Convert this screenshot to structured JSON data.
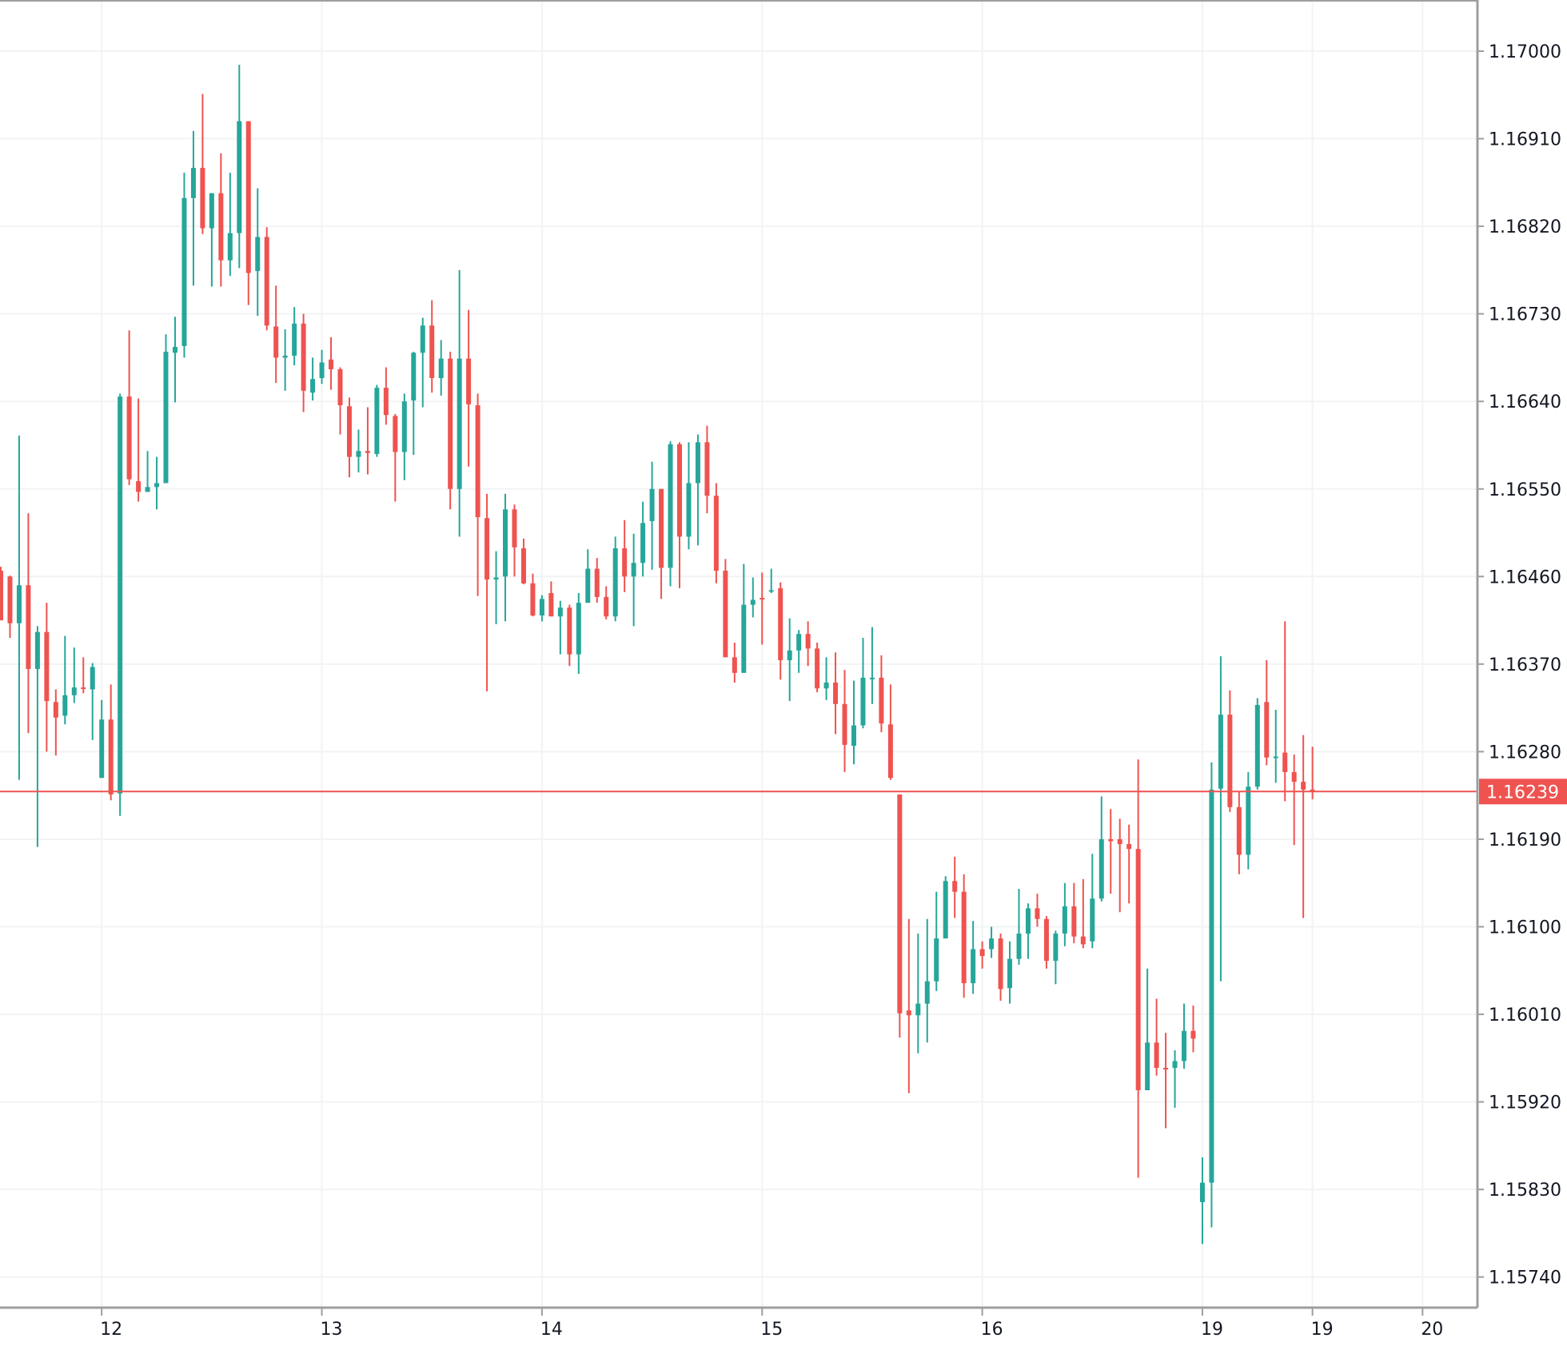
{
  "chart_data": {
    "type": "candlestick",
    "title": "",
    "xlabel": "",
    "ylabel": "",
    "ylim": [
      1.157,
      1.1705
    ],
    "grid": true,
    "colors": {
      "up": "#26a69a",
      "down": "#ef5350",
      "grid": "#f2f3f5",
      "axis": "#9e9e9e",
      "last_price": "#ef5350"
    },
    "y_ticks": [
      "1.17000",
      "1.16910",
      "1.16820",
      "1.16730",
      "1.16640",
      "1.16550",
      "1.16460",
      "1.16370",
      "1.16280",
      "1.16190",
      "1.16100",
      "1.16010",
      "1.15920",
      "1.15830",
      "1.15740"
    ],
    "x_ticks": [
      {
        "label": "12",
        "bar": 11
      },
      {
        "label": "13",
        "bar": 35
      },
      {
        "label": "14",
        "bar": 59
      },
      {
        "label": "15",
        "bar": 83
      },
      {
        "label": "16",
        "bar": 107
      },
      {
        "label": "19",
        "bar": 131
      },
      {
        "label": "19",
        "bar": 143
      },
      {
        "label": "20",
        "bar": 155
      }
    ],
    "last_price": "1.16239",
    "ohlc_fields": [
      "open",
      "high",
      "low",
      "close"
    ],
    "candles": [
      [
        1.16466,
        1.1647,
        1.16415,
        1.16415
      ],
      [
        1.1646,
        1.16461,
        1.16397,
        1.16412
      ],
      [
        1.16412,
        1.16605,
        1.16251,
        1.16451
      ],
      [
        1.16451,
        1.16525,
        1.16299,
        1.16365
      ],
      [
        1.16365,
        1.16409,
        1.16182,
        1.16403
      ],
      [
        1.16403,
        1.16433,
        1.1628,
        1.16332
      ],
      [
        1.16331,
        1.16344,
        1.16276,
        1.16315
      ],
      [
        1.16317,
        1.16399,
        1.16308,
        1.16338
      ],
      [
        1.16338,
        1.16387,
        1.1633,
        1.16346
      ],
      [
        1.16346,
        1.16377,
        1.1634,
        1.16345
      ],
      [
        1.16344,
        1.16371,
        1.16292,
        1.16367
      ],
      [
        1.16253,
        1.16333,
        1.16253,
        1.16313
      ],
      [
        1.16313,
        1.16349,
        1.1623,
        1.16236
      ],
      [
        1.16237,
        1.16648,
        1.16214,
        1.16645
      ],
      [
        1.16645,
        1.16713,
        1.16554,
        1.1656
      ],
      [
        1.16558,
        1.16643,
        1.16537,
        1.16547
      ],
      [
        1.16547,
        1.16589,
        1.16547,
        1.16552
      ],
      [
        1.16552,
        1.16583,
        1.16529,
        1.16556
      ],
      [
        1.16556,
        1.16709,
        1.16556,
        1.16691
      ],
      [
        1.1669,
        1.16727,
        1.16639,
        1.16696
      ],
      [
        1.16697,
        1.16875,
        1.16685,
        1.16849
      ],
      [
        1.16849,
        1.16918,
        1.16759,
        1.1688
      ],
      [
        1.1688,
        1.16956,
        1.16812,
        1.16818
      ],
      [
        1.16818,
        1.16854,
        1.16758,
        1.16854
      ],
      [
        1.16854,
        1.16895,
        1.16758,
        1.16785
      ],
      [
        1.16785,
        1.16875,
        1.16769,
        1.16813
      ],
      [
        1.16813,
        1.16986,
        1.16777,
        1.16928
      ],
      [
        1.16928,
        1.16928,
        1.16739,
        1.16772
      ],
      [
        1.16774,
        1.16859,
        1.16728,
        1.16809
      ],
      [
        1.16809,
        1.16819,
        1.16713,
        1.16718
      ],
      [
        1.16717,
        1.16759,
        1.16659,
        1.16685
      ],
      [
        1.16685,
        1.16714,
        1.16651,
        1.16687
      ],
      [
        1.16687,
        1.16737,
        1.16677,
        1.1672
      ],
      [
        1.1672,
        1.1673,
        1.16629,
        1.16651
      ],
      [
        1.16649,
        1.16685,
        1.16641,
        1.16663
      ],
      [
        1.16664,
        1.16693,
        1.16658,
        1.1668
      ],
      [
        1.16683,
        1.16706,
        1.16652,
        1.16673
      ],
      [
        1.16673,
        1.16675,
        1.16606,
        1.16636
      ],
      [
        1.16635,
        1.16644,
        1.16562,
        1.16583
      ],
      [
        1.16583,
        1.16611,
        1.16567,
        1.16589
      ],
      [
        1.16589,
        1.16634,
        1.16565,
        1.16587
      ],
      [
        1.16586,
        1.16657,
        1.16583,
        1.16654
      ],
      [
        1.16654,
        1.16675,
        1.16616,
        1.16626
      ],
      [
        1.16625,
        1.16627,
        1.16537,
        1.16588
      ],
      [
        1.16588,
        1.16648,
        1.16559,
        1.1664
      ],
      [
        1.16641,
        1.16691,
        1.16585,
        1.1669
      ],
      [
        1.1669,
        1.16726,
        1.16634,
        1.16718
      ],
      [
        1.16718,
        1.16744,
        1.16649,
        1.16664
      ],
      [
        1.16664,
        1.16703,
        1.16646,
        1.16684
      ],
      [
        1.16684,
        1.16691,
        1.16529,
        1.1655
      ],
      [
        1.1655,
        1.16775,
        1.16501,
        1.16684
      ],
      [
        1.16684,
        1.16734,
        1.16573,
        1.16637
      ],
      [
        1.16636,
        1.16648,
        1.1644,
        1.16521
      ],
      [
        1.1652,
        1.16545,
        1.16342,
        1.16457
      ],
      [
        1.16457,
        1.16486,
        1.16411,
        1.16459
      ],
      [
        1.1646,
        1.16545,
        1.16414,
        1.16529
      ],
      [
        1.16529,
        1.16534,
        1.1646,
        1.1649
      ],
      [
        1.16489,
        1.16499,
        1.16452,
        1.16453
      ],
      [
        1.16453,
        1.16463,
        1.16419,
        1.1642
      ],
      [
        1.1642,
        1.16441,
        1.16414,
        1.16437
      ],
      [
        1.16443,
        1.16455,
        1.16419,
        1.16419
      ],
      [
        1.16419,
        1.16435,
        1.1638,
        1.16428
      ],
      [
        1.16428,
        1.16431,
        1.16368,
        1.1638
      ],
      [
        1.1638,
        1.16443,
        1.1636,
        1.16433
      ],
      [
        1.16433,
        1.16488,
        1.16433,
        1.16468
      ],
      [
        1.16468,
        1.16479,
        1.16433,
        1.16439
      ],
      [
        1.16439,
        1.1645,
        1.16416,
        1.16419
      ],
      [
        1.16419,
        1.16501,
        1.16414,
        1.16489
      ],
      [
        1.16489,
        1.16518,
        1.16444,
        1.1646
      ],
      [
        1.1646,
        1.16504,
        1.16409,
        1.16474
      ],
      [
        1.16474,
        1.16537,
        1.1646,
        1.16515
      ],
      [
        1.16517,
        1.16578,
        1.16467,
        1.1655
      ],
      [
        1.1655,
        1.1655,
        1.16437,
        1.16469
      ],
      [
        1.16469,
        1.16599,
        1.1645,
        1.16596
      ],
      [
        1.16596,
        1.16598,
        1.16448,
        1.16501
      ],
      [
        1.16501,
        1.16598,
        1.16488,
        1.16556
      ],
      [
        1.16556,
        1.16606,
        1.16492,
        1.16598
      ],
      [
        1.16598,
        1.16615,
        1.16525,
        1.16543
      ],
      [
        1.16543,
        1.16556,
        1.16453,
        1.16466
      ],
      [
        1.16466,
        1.16478,
        1.16377,
        1.16377
      ],
      [
        1.16377,
        1.16392,
        1.16351,
        1.16361
      ],
      [
        1.16361,
        1.16473,
        1.16361,
        1.16431
      ],
      [
        1.16431,
        1.16459,
        1.16418,
        1.16436
      ],
      [
        1.16438,
        1.16464,
        1.1639,
        1.16437
      ],
      [
        1.16445,
        1.16468,
        1.16443,
        1.16446
      ],
      [
        1.16448,
        1.16454,
        1.16354,
        1.16374
      ],
      [
        1.16374,
        1.16417,
        1.16332,
        1.16384
      ],
      [
        1.16384,
        1.16405,
        1.16361,
        1.16401
      ],
      [
        1.16401,
        1.16414,
        1.16368,
        1.16386
      ],
      [
        1.16386,
        1.16392,
        1.16341,
        1.16345
      ],
      [
        1.16345,
        1.16377,
        1.16333,
        1.16351
      ],
      [
        1.16351,
        1.16382,
        1.16298,
        1.16329
      ],
      [
        1.16329,
        1.16364,
        1.16259,
        1.16287
      ],
      [
        1.16286,
        1.16353,
        1.16267,
        1.16307
      ],
      [
        1.16307,
        1.16397,
        1.16304,
        1.16356
      ],
      [
        1.16355,
        1.16408,
        1.16329,
        1.16356
      ],
      [
        1.16356,
        1.16379,
        1.163,
        1.16309
      ],
      [
        1.16308,
        1.16349,
        1.16251,
        1.16253
      ],
      [
        1.16236,
        1.16236,
        1.15986,
        1.16011
      ],
      [
        1.16014,
        1.16108,
        1.15929,
        1.16009
      ],
      [
        1.16009,
        1.16093,
        1.1597,
        1.16021
      ],
      [
        1.16021,
        1.16108,
        1.15981,
        1.16044
      ],
      [
        1.16044,
        1.16136,
        1.16034,
        1.16088
      ],
      [
        1.16088,
        1.16152,
        1.16088,
        1.16147
      ],
      [
        1.16147,
        1.16172,
        1.16109,
        1.16136
      ],
      [
        1.16136,
        1.16154,
        1.16027,
        1.16042
      ],
      [
        1.16042,
        1.16106,
        1.16031,
        1.16077
      ],
      [
        1.16077,
        1.16085,
        1.16057,
        1.1607
      ],
      [
        1.16077,
        1.161,
        1.16068,
        1.16088
      ],
      [
        1.16088,
        1.16093,
        1.16024,
        1.16036
      ],
      [
        1.16037,
        1.16085,
        1.16021,
        1.16067
      ],
      [
        1.16067,
        1.16139,
        1.16061,
        1.16093
      ],
      [
        1.16093,
        1.16124,
        1.16067,
        1.16119
      ],
      [
        1.16119,
        1.16134,
        1.161,
        1.16108
      ],
      [
        1.16108,
        1.16111,
        1.16057,
        1.16065
      ],
      [
        1.16065,
        1.16096,
        1.16041,
        1.16093
      ],
      [
        1.16093,
        1.16145,
        1.1608,
        1.16121
      ],
      [
        1.16121,
        1.16145,
        1.16083,
        1.1609
      ],
      [
        1.1609,
        1.16149,
        1.16078,
        1.16082
      ],
      [
        1.16085,
        1.16175,
        1.16078,
        1.16129
      ],
      [
        1.16129,
        1.16234,
        1.16126,
        1.1619
      ],
      [
        1.1619,
        1.16221,
        1.16134,
        1.16188
      ],
      [
        1.1619,
        1.16211,
        1.16115,
        1.16185
      ],
      [
        1.16185,
        1.16205,
        1.16124,
        1.1618
      ],
      [
        1.1618,
        1.16272,
        1.15842,
        1.15932
      ],
      [
        1.15932,
        1.16057,
        1.15932,
        1.15981
      ],
      [
        1.15981,
        1.16026,
        1.15947,
        1.15955
      ],
      [
        1.15955,
        1.15991,
        1.15893,
        1.15954
      ],
      [
        1.15955,
        1.15973,
        1.15914,
        1.15962
      ],
      [
        1.15962,
        1.16021,
        1.15954,
        1.15993
      ],
      [
        1.15993,
        1.16019,
        1.15971,
        1.15985
      ],
      [
        1.15817,
        1.15863,
        1.15774,
        1.15837
      ],
      [
        1.15837,
        1.16269,
        1.15791,
        1.16241
      ],
      [
        1.16242,
        1.16378,
        1.16044,
        1.16318
      ],
      [
        1.16318,
        1.16343,
        1.16218,
        1.16223
      ],
      [
        1.16223,
        1.16239,
        1.16154,
        1.16174
      ],
      [
        1.16174,
        1.16259,
        1.16159,
        1.16244
      ],
      [
        1.16244,
        1.16335,
        1.16241,
        1.16328
      ],
      [
        1.16331,
        1.16374,
        1.16266,
        1.16274
      ],
      [
        1.16274,
        1.16323,
        1.16248,
        1.16275
      ],
      [
        1.16279,
        1.16414,
        1.16229,
        1.16259
      ],
      [
        1.16259,
        1.16277,
        1.16184,
        1.16249
      ],
      [
        1.16249,
        1.16297,
        1.16109,
        1.16241
      ],
      [
        1.16241,
        1.16285,
        1.16231,
        1.16239
      ]
    ]
  }
}
